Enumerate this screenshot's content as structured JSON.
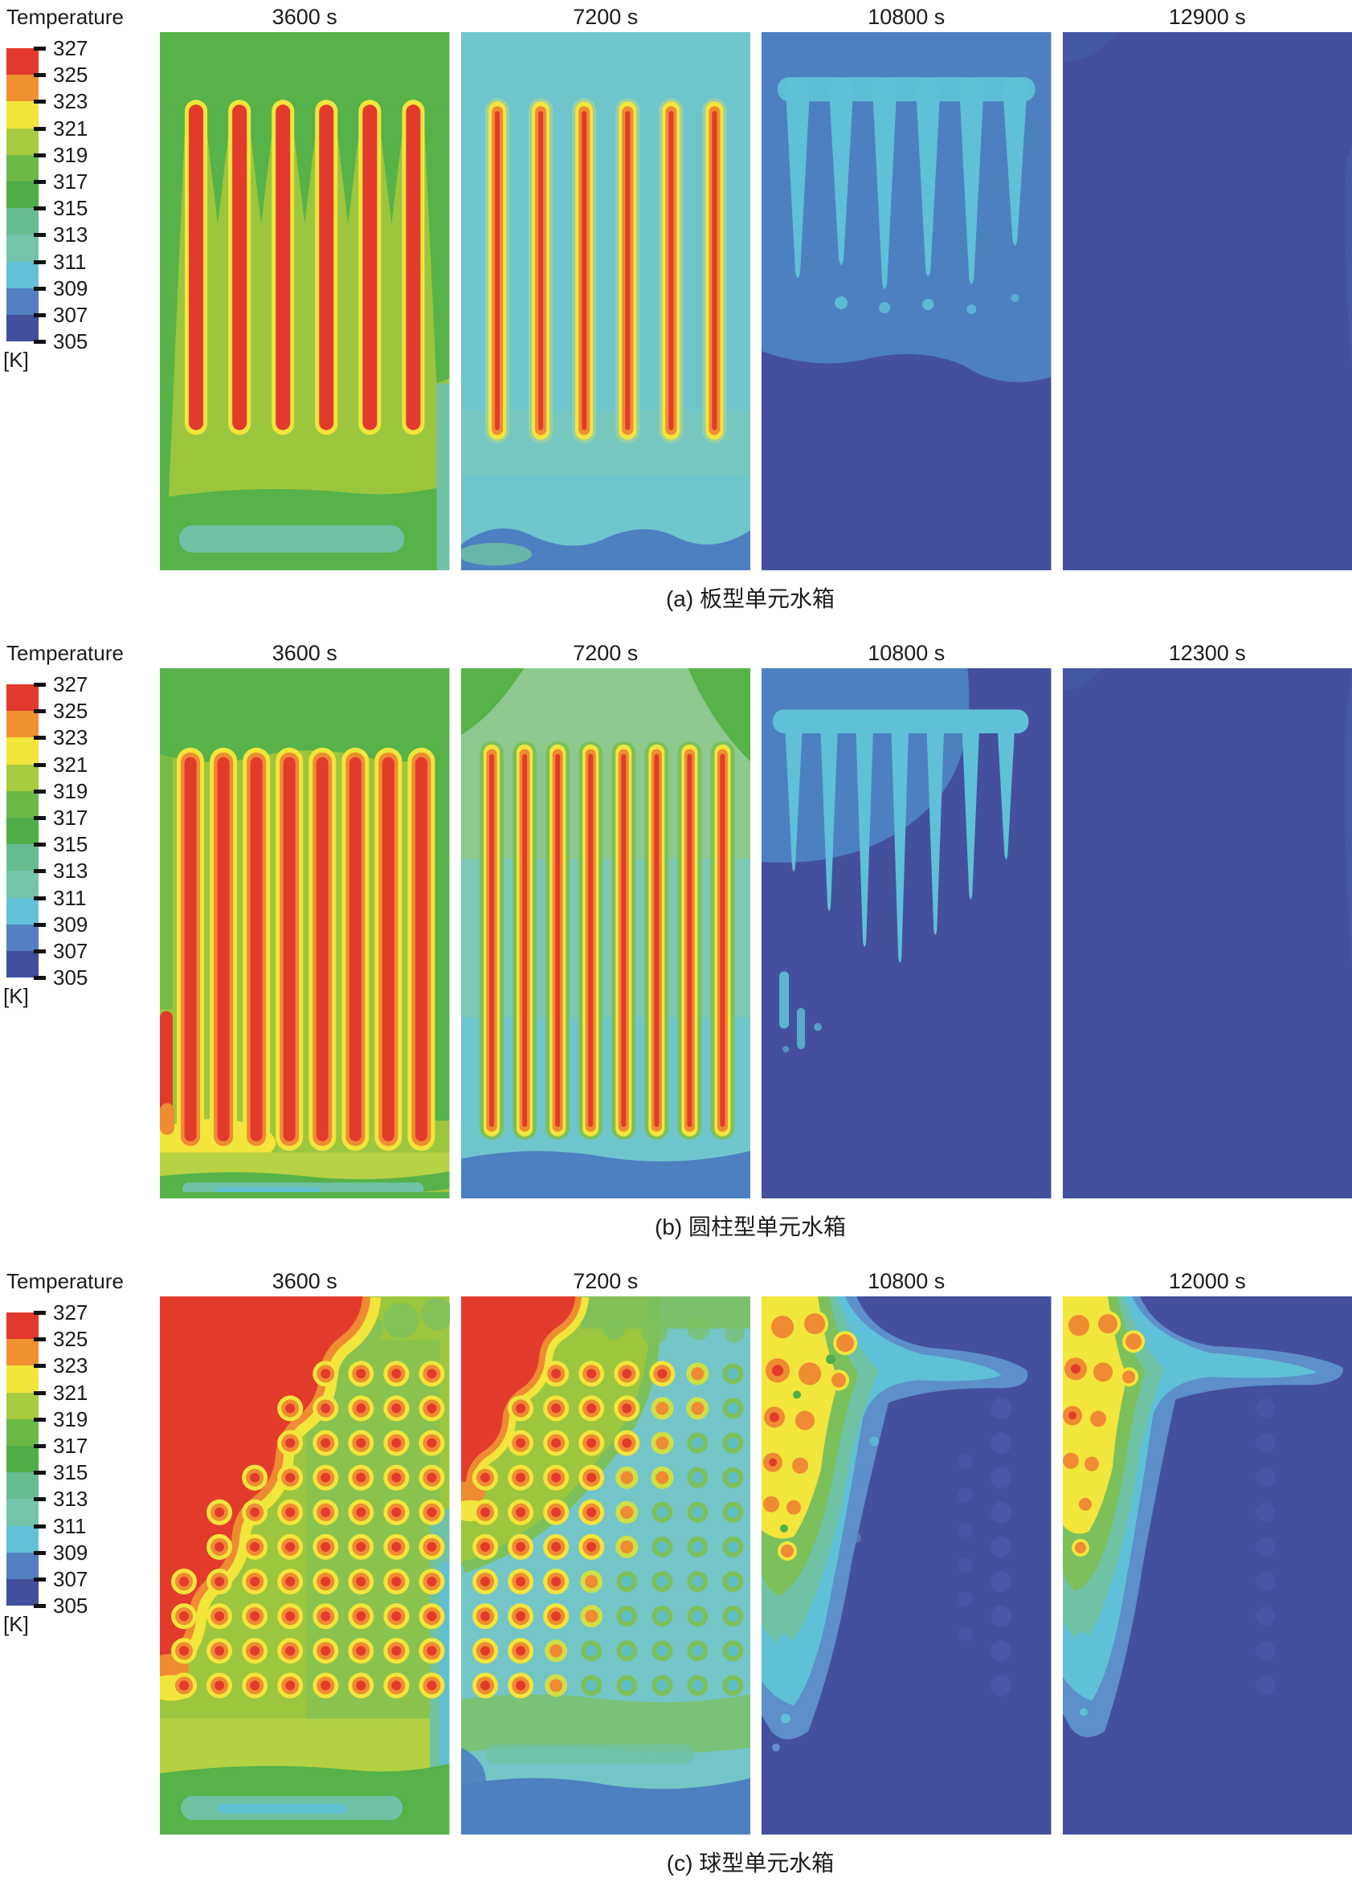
{
  "figure": {
    "legend": {
      "title": "Temperature",
      "unit": "[K]",
      "levels": [
        "327",
        "325",
        "323",
        "321",
        "319",
        "317",
        "315",
        "313",
        "311",
        "309",
        "307",
        "305"
      ],
      "colors": [
        "#e2392c",
        "#f0902f",
        "#f2e53c",
        "#a8ca3e",
        "#6bb947",
        "#4fae48",
        "#66bd92",
        "#74c4ab",
        "#62c1d8",
        "#5280c0",
        "#424f9c"
      ]
    },
    "plot_colors": {
      "bg_green": "#9cc63d",
      "band_green": "#56b249",
      "halo_green": "#7cc05c",
      "pale_green": "#b7d244",
      "yellow": "#f2e53c",
      "orange": "#ef8b33",
      "red": "#e23b2c",
      "teal": "#6fc2a4",
      "cyan": "#5fc0d8",
      "bg_cyan": "#6fc5cc",
      "mid_blue": "#4d80c1",
      "light_blue": "#5d8fca",
      "deep_blue": "#44509d",
      "ghost_blue": "#4b58a8",
      "mix_teal": "#7cc8b5",
      "green_teal": "#8dc98e",
      "cool_core": "#5fbfc4",
      "mid_ring": "#cfe046",
      "deep_green": "#4fae48"
    },
    "rows": [
      {
        "id": "a",
        "caption": "(a) 板型单元水箱",
        "unit_type": "plate",
        "panels": [
          {
            "time": "3600 s"
          },
          {
            "time": "7200 s"
          },
          {
            "time": "10800 s"
          },
          {
            "time": "12900 s"
          }
        ]
      },
      {
        "id": "b",
        "caption": "(b) 圆柱型单元水箱",
        "unit_type": "cylinder",
        "panels": [
          {
            "time": "3600 s"
          },
          {
            "time": "7200 s"
          },
          {
            "time": "10800 s"
          },
          {
            "time": "12300 s"
          }
        ]
      },
      {
        "id": "c",
        "caption": "(c) 球型单元水箱",
        "unit_type": "sphere",
        "panels": [
          {
            "time": "3600 s"
          },
          {
            "time": "7200 s"
          },
          {
            "time": "10800 s"
          },
          {
            "time": "12000 s"
          }
        ]
      }
    ]
  },
  "chart_data": {
    "type": "heatmap",
    "title": "Temperature",
    "unit": "K",
    "colorbar": {
      "levels": [
        327,
        325,
        323,
        321,
        319,
        317,
        315,
        313,
        311,
        309,
        307,
        305
      ],
      "colors": [
        "#e2392c",
        "#f0902f",
        "#f2e53c",
        "#a8ca3e",
        "#6bb947",
        "#4fae48",
        "#66bd92",
        "#74c4ab",
        "#62c1d8",
        "#5280c0",
        "#424f9c"
      ]
    },
    "groups": [
      {
        "label": "(a) 板型单元水箱",
        "unit_shape": "plate",
        "snapshot_times_s": [
          3600,
          7200,
          10800,
          12900
        ],
        "snapshots": [
          {
            "time_s": 3600,
            "pattern": "six vertical plate units at ~325-327 K in ~317-321 K water, cooler teal streak at tank bottom"
          },
          {
            "time_s": 7200,
            "pattern": "thin ~323-327 K plate cores with yellow fringes in ~309-313 K water, ~307-309 K layer at bottom"
          },
          {
            "time_s": 10800,
            "pattern": "~309-311 K fingers remaining above plate positions, upper tank ~307-309 K, lower tank ~305-307 K"
          },
          {
            "time_s": 12900,
            "pattern": "tank nearly uniform at ~305-307 K"
          }
        ]
      },
      {
        "label": "(b) 圆柱型单元水箱",
        "unit_shape": "cylinder",
        "snapshot_times_s": [
          3600,
          7200,
          10800,
          12300
        ],
        "snapshots": [
          {
            "time_s": 3600,
            "pattern": "eight cylinder units at ~325-327 K with ~321-323 K halos in ~317-321 K water"
          },
          {
            "time_s": 7200,
            "pattern": "thin ~323-327 K cylinder cores with green halos in ~311-315 K water, ~307-309 K at bottom"
          },
          {
            "time_s": 10800,
            "pattern": "~309-311 K tapered fingers under top region, rest of tank ~305-307 K"
          },
          {
            "time_s": 12300,
            "pattern": "tank nearly uniform at ~305-307 K"
          }
        ]
      },
      {
        "label": "(c) 球型单元水箱",
        "unit_shape": "sphere",
        "snapshot_times_s": [
          3600,
          7200,
          10800,
          12000
        ],
        "snapshots": [
          {
            "time_s": 3600,
            "pattern": "grid of sphere units (~325-327 K cores, orange/yellow rings); hot ~327 K plume fills upper-left; ~311-313 K layer at bottom"
          },
          {
            "time_s": 7200,
            "pattern": "hot region shrunk to top-left corner; left spheres still ~323-327 K, right spheres ~311-315 K in ~309-311 K water; ~307-309 K bottom layer"
          },
          {
            "time_s": 10800,
            "pattern": "warm wedge of ~321-325 K spheres at top-left with cyan fringe arm; bulk of tank ~305-307 K"
          },
          {
            "time_s": 12000,
            "pattern": "smaller warm wedge at top-left; tank almost entirely ~305-307 K"
          }
        ]
      }
    ]
  }
}
